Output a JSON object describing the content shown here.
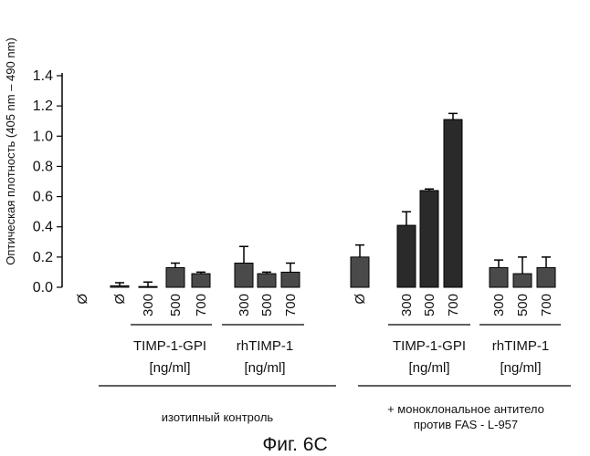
{
  "chart_data": {
    "type": "bar",
    "ylabel": "Оптическая плотность (405 nm – 490 nm)",
    "ylim": [
      0,
      1.4
    ],
    "yticks": [
      "0.0",
      "0.2",
      "0.4",
      "0.6",
      "0.8",
      "1.0",
      "1.2",
      "1.4"
    ],
    "categories": [
      "Ø",
      "Ø",
      "300",
      "500",
      "700",
      "300",
      "500",
      "700",
      "Ø",
      "300",
      "500",
      "700",
      "300",
      "500",
      "700"
    ],
    "values": [
      0.0,
      0.01,
      0.005,
      0.13,
      0.09,
      0.16,
      0.09,
      0.1,
      0.2,
      0.41,
      0.64,
      1.11,
      0.13,
      0.09,
      0.13
    ],
    "errors": [
      0.0,
      0.02,
      0.03,
      0.03,
      0.01,
      0.11,
      0.01,
      0.06,
      0.08,
      0.09,
      0.01,
      0.04,
      0.05,
      0.11,
      0.07
    ],
    "groups": [
      {
        "label": "TIMP-1-GPI",
        "unit": "[ng/ml]"
      },
      {
        "label": "rhTIMP-1",
        "unit": "[ng/ml]"
      },
      {
        "label": "TIMP-1-GPI",
        "unit": "[ng/ml]"
      },
      {
        "label": "rhTIMP-1",
        "unit": "[ng/ml]"
      }
    ],
    "sections": [
      {
        "label": "изотипный контроль"
      },
      {
        "label_line1": "+ моноклональное антитело",
        "label_line2": "против FAS - L-957"
      }
    ],
    "caption": "Фиг. 6С"
  },
  "colors": {
    "bar_fill": "#4a4a4a",
    "bar_fill_dense": "#2a2a2a",
    "axis": "#000000"
  }
}
